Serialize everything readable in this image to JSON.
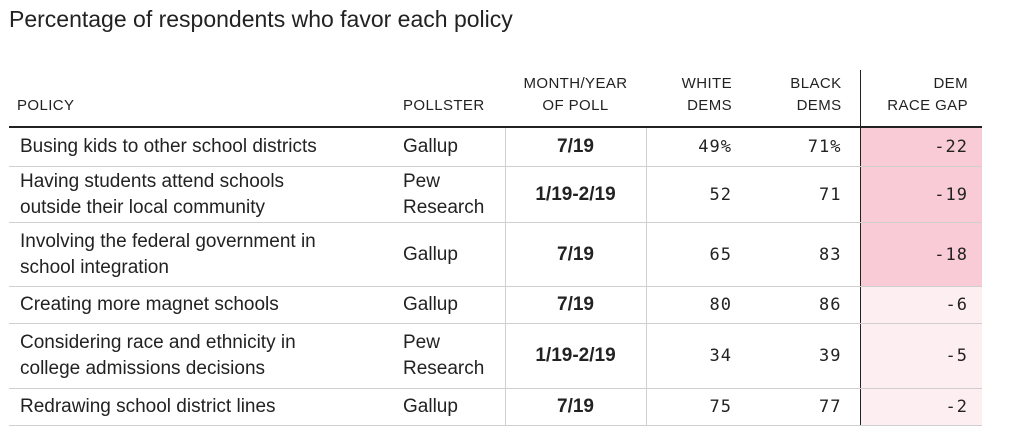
{
  "title": "Percentage of respondents who favor each policy",
  "headers": {
    "policy": "POLICY",
    "pollster": "POLLSTER",
    "date_line1": "MONTH/YEAR",
    "date_line2": "OF POLL",
    "white_line1": "WHITE",
    "white_line2": "DEMS",
    "black_line1": "BLACK",
    "black_line2": "DEMS",
    "gap_line1": "DEM",
    "gap_line2": "RACE GAP"
  },
  "colors": {
    "gap_strong": "#f8cbd6",
    "gap_light": "#fdeef2"
  },
  "chart_data": {
    "type": "table",
    "title": "Percentage of respondents who favor each policy",
    "columns": [
      "POLICY",
      "POLLSTER",
      "MONTH/YEAR OF POLL",
      "WHITE DEMS",
      "BLACK DEMS",
      "DEM RACE GAP"
    ],
    "rows": [
      {
        "policy_line1": "Busing kids to other school districts",
        "policy_line2": "",
        "pollster_line1": "Gallup",
        "pollster_line2": "",
        "date": "7/19",
        "white": "49%",
        "black": "71%",
        "gap": "-22",
        "gap_value": -22
      },
      {
        "policy_line1": "Having students attend schools",
        "policy_line2": "outside their local community",
        "pollster_line1": "Pew",
        "pollster_line2": "Research",
        "date": "1/19-2/19",
        "white": "52",
        "black": "71",
        "gap": "-19",
        "gap_value": -19
      },
      {
        "policy_line1": "Involving the federal government in",
        "policy_line2": "school integration",
        "pollster_line1": "Gallup",
        "pollster_line2": "",
        "date": "7/19",
        "white": "65",
        "black": "83",
        "gap": "-18",
        "gap_value": -18
      },
      {
        "policy_line1": "Creating more magnet schools",
        "policy_line2": "",
        "pollster_line1": "Gallup",
        "pollster_line2": "",
        "date": "7/19",
        "white": "80",
        "black": "86",
        "gap": "-6",
        "gap_value": -6
      },
      {
        "policy_line1": "Considering race and ethnicity in",
        "policy_line2": "college admissions decisions",
        "pollster_line1": "Pew",
        "pollster_line2": "Research",
        "date": "1/19-2/19",
        "white": "34",
        "black": "39",
        "gap": "-5",
        "gap_value": -5
      },
      {
        "policy_line1": "Redrawing school district lines",
        "policy_line2": "",
        "pollster_line1": "Gallup",
        "pollster_line2": "",
        "date": "7/19",
        "white": "75",
        "black": "77",
        "gap": "-2",
        "gap_value": -2
      }
    ]
  }
}
